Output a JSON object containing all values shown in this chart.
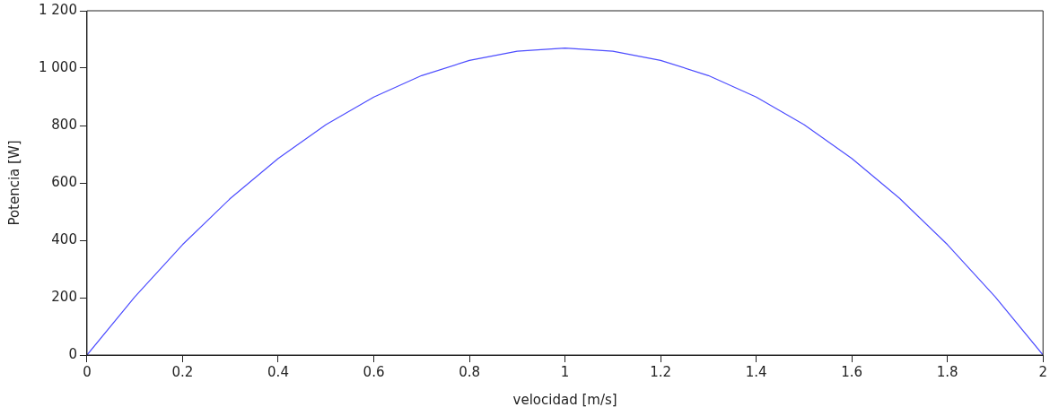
{
  "chart_data": {
    "type": "line",
    "xlabel": "velocidad [m/s]",
    "ylabel": "Potencia [W]",
    "x": [
      0,
      0.1,
      0.2,
      0.3,
      0.4,
      0.5,
      0.6,
      0.7,
      0.8,
      0.9,
      1,
      1.1,
      1.2,
      1.3,
      1.4,
      1.5,
      1.6,
      1.7,
      1.8,
      1.9,
      2
    ],
    "series": [
      {
        "color": "#4d4dff",
        "values": [
          0,
          203,
          385,
          546,
          685,
          803,
          899,
          974,
          1027,
          1059,
          1070,
          1059,
          1027,
          974,
          899,
          803,
          685,
          546,
          385,
          203,
          0
        ]
      }
    ],
    "xlim": [
      0,
      2
    ],
    "xticks": [
      0,
      0.2,
      0.4,
      0.6,
      0.8,
      1,
      1.2,
      1.4,
      1.6,
      1.8,
      2
    ],
    "ylim": [
      0,
      1200
    ],
    "yticks": [
      0,
      200,
      400,
      600,
      800,
      {
        "value": 1000,
        "label": "1 000"
      },
      {
        "value": 1200,
        "label": "1 200"
      }
    ],
    "grid": false,
    "legend": false,
    "marker": "none",
    "line_style": "solid"
  }
}
